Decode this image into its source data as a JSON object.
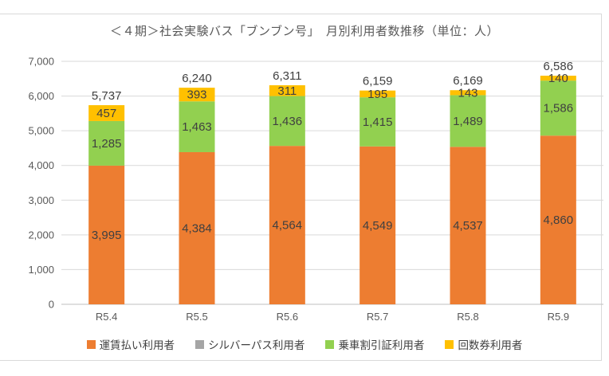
{
  "chart_data": {
    "type": "bar",
    "stacked": true,
    "title": "＜４期＞社会実験バス「ブンブン号」　月別利用者数推移（単位：人）",
    "categories": [
      "R5.4",
      "R5.5",
      "R5.6",
      "R5.7",
      "R5.8",
      "R5.9"
    ],
    "series": [
      {
        "name": "運賃払い利用者",
        "color": "#ED7D31",
        "values": [
          3995,
          4384,
          4564,
          4549,
          4537,
          4860
        ]
      },
      {
        "name": "シルバーパス利用者",
        "color": "#A5A5A5",
        "values": [
          0,
          0,
          0,
          0,
          0,
          0
        ]
      },
      {
        "name": "乗車割引証利用者",
        "color": "#92D050",
        "values": [
          1285,
          1463,
          1436,
          1415,
          1489,
          1586
        ]
      },
      {
        "name": "回数券利用者",
        "color": "#FFC000",
        "values": [
          457,
          393,
          311,
          195,
          143,
          140
        ]
      }
    ],
    "totals": [
      5737,
      6240,
      6311,
      6159,
      6169,
      6586
    ],
    "xlabel": "",
    "ylabel": "",
    "y_axis": {
      "min": 0,
      "max": 7000,
      "step": 1000,
      "tick_labels": [
        "0",
        "1,000",
        "2,000",
        "3,000",
        "4,000",
        "5,000",
        "6,000",
        "7,000"
      ]
    },
    "legend_position": "bottom",
    "grid": true,
    "colors": {
      "background": "#FFFFFF",
      "gridline": "#D9D9D9",
      "axis_line": "#BFBFBF",
      "tick_label": "#595959",
      "data_label": "#404040",
      "title": "#595959",
      "frame_border": "#D9D9D9"
    }
  }
}
